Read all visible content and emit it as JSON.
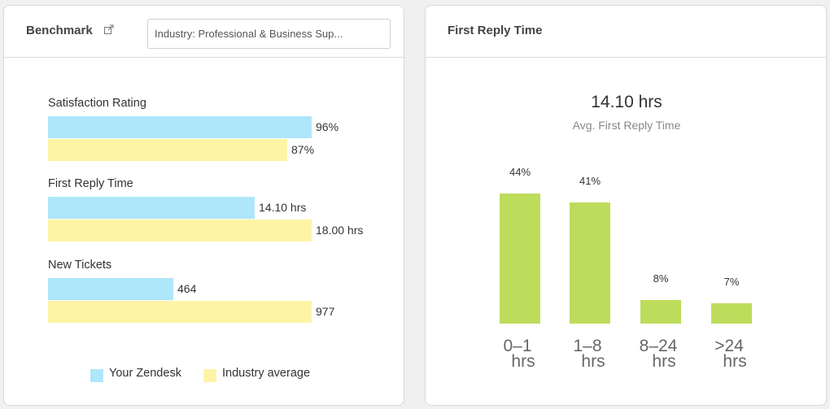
{
  "benchmark": {
    "title": "Benchmark",
    "link_icon": "external-link-icon",
    "industry_select": "Industry: Professional & Business Sup...",
    "metrics": [
      {
        "label": "Satisfaction Rating",
        "you": 96,
        "you_label": "96%",
        "industry": 87,
        "industry_label": "87%"
      },
      {
        "label": "First Reply Time",
        "you": 14.1,
        "you_label": "14.10 hrs",
        "industry": 18.0,
        "industry_label": "18.00 hrs"
      },
      {
        "label": "New Tickets",
        "you": 464,
        "you_label": "464",
        "industry": 977,
        "industry_label": "977"
      }
    ],
    "legend": {
      "you": "Your Zendesk",
      "industry": "Industry average"
    },
    "colors": {
      "you": "#aee6fa",
      "industry": "#fdf4a6"
    }
  },
  "first_reply": {
    "title": "First Reply Time",
    "value": "14.10 hrs",
    "subtitle": "Avg. First Reply Time"
  },
  "chart_data": {
    "type": "bar",
    "categories": [
      [
        "0–1",
        "hrs"
      ],
      [
        "1–8",
        "hrs"
      ],
      [
        "8–24",
        "hrs"
      ],
      [
        ">24",
        "hrs"
      ]
    ],
    "values": [
      44,
      41,
      8,
      7
    ],
    "value_labels": [
      "44%",
      "41%",
      "8%",
      "7%"
    ],
    "ylim": [
      0,
      100
    ],
    "grid": false,
    "color": "#bddc5c"
  }
}
